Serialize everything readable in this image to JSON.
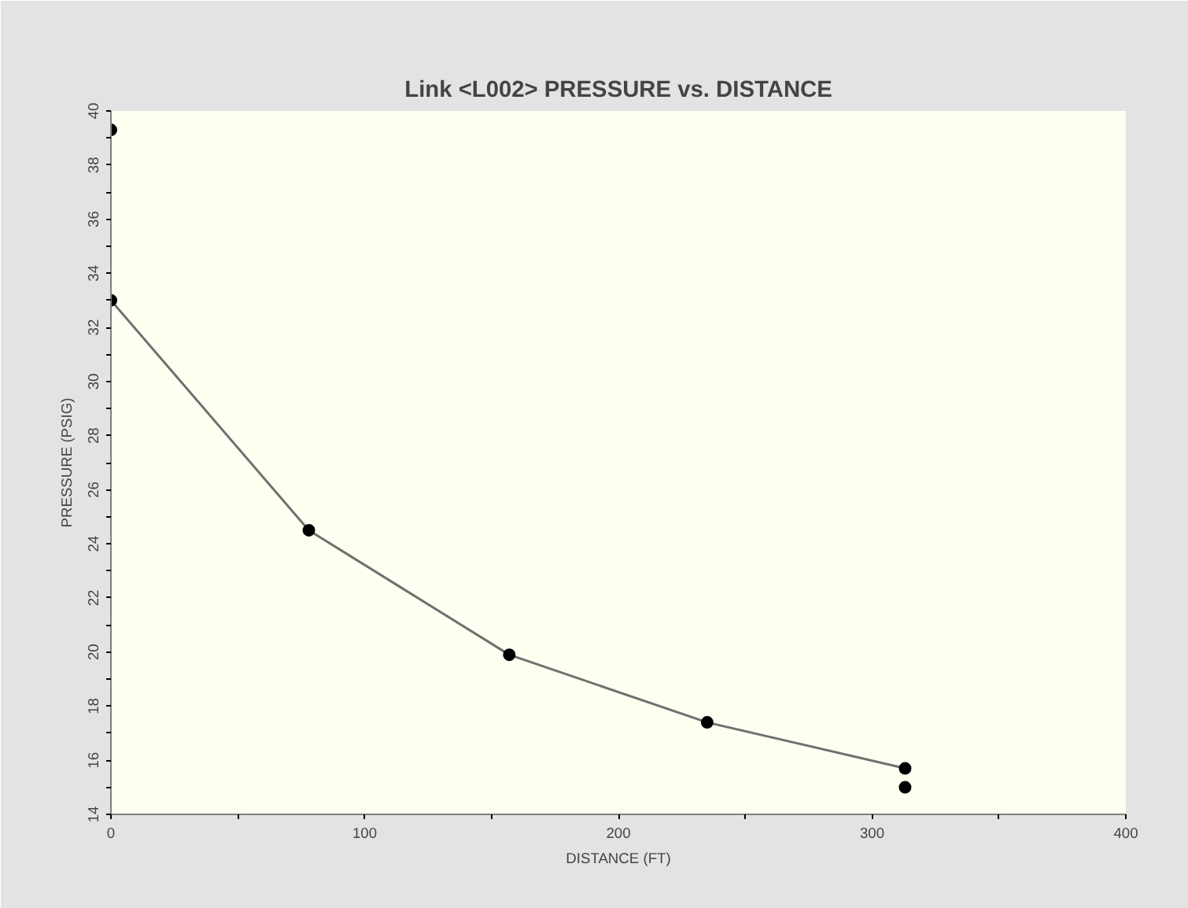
{
  "chart_data": {
    "type": "line",
    "title": "Link <L002> PRESSURE vs. DISTANCE",
    "xlabel": "DISTANCE (FT)",
    "ylabel": "PRESSURE (PSIG)",
    "xlim": [
      0,
      400
    ],
    "ylim": [
      14,
      40
    ],
    "xticks": [
      0,
      {
        "value": 50,
        "label": null
      },
      100,
      {
        "value": 150,
        "label": null
      },
      200,
      {
        "value": 250,
        "label": null
      },
      300,
      {
        "value": 350,
        "label": null
      },
      400
    ],
    "yticks": [
      14,
      {
        "value": 15,
        "label": null
      },
      16,
      {
        "value": 17,
        "label": null
      },
      18,
      {
        "value": 19,
        "label": null
      },
      20,
      {
        "value": 21,
        "label": null
      },
      22,
      {
        "value": 23,
        "label": null
      },
      24,
      {
        "value": 25,
        "label": null
      },
      26,
      {
        "value": 27,
        "label": null
      },
      28,
      {
        "value": 29,
        "label": null
      },
      30,
      {
        "value": 31,
        "label": null
      },
      32,
      {
        "value": 33,
        "label": null
      },
      34,
      {
        "value": 35,
        "label": null
      },
      36,
      {
        "value": 37,
        "label": null
      },
      38,
      {
        "value": 39,
        "label": null
      },
      40
    ],
    "grid": false,
    "marker": "circle",
    "line_style": "solid",
    "series": [
      {
        "color": "#707070",
        "x": [
          0,
          78,
          157,
          235,
          313
        ],
        "values": [
          33.0,
          24.5,
          19.9,
          17.4,
          15.7
        ]
      },
      {
        "type": "scatter",
        "color": "#000000",
        "x": [
          0,
          313
        ],
        "values": [
          39.3,
          15.0
        ]
      }
    ]
  }
}
